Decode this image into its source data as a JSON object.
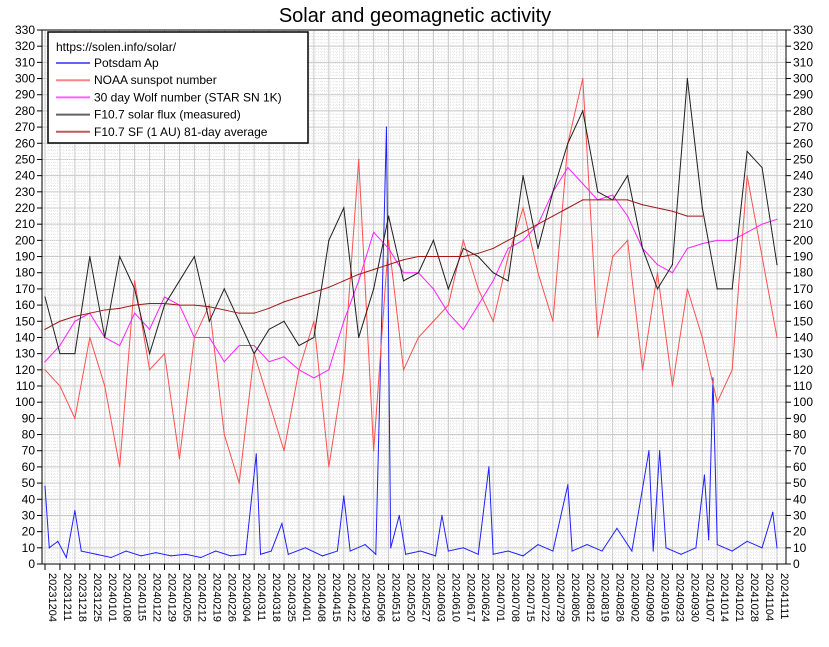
{
  "chart_data": {
    "type": "line",
    "title": "Solar and geomagnetic activity",
    "xlabel": "",
    "ylabel": "",
    "ylim": [
      0,
      330
    ],
    "y_ticks": [
      0,
      10,
      20,
      30,
      40,
      50,
      60,
      70,
      80,
      90,
      100,
      110,
      120,
      130,
      140,
      150,
      160,
      170,
      180,
      190,
      200,
      210,
      220,
      230,
      240,
      250,
      260,
      270,
      280,
      290,
      300,
      310,
      320,
      330
    ],
    "x_day_range": [
      0,
      343
    ],
    "x_tick_labels": [
      "20231204",
      "20231211",
      "20231218",
      "20231225",
      "20240101",
      "20240108",
      "20240115",
      "20240122",
      "20240129",
      "20240205",
      "20240212",
      "20240219",
      "20240226",
      "20240304",
      "20240311",
      "20240318",
      "20240325",
      "20240401",
      "20240408",
      "20240415",
      "20240422",
      "20240429",
      "20240506",
      "20240513",
      "20240520",
      "20240527",
      "20240603",
      "20240610",
      "20240617",
      "20240624",
      "20240701",
      "20240708",
      "20240715",
      "20240722",
      "20240729",
      "20240805",
      "20240812",
      "20240819",
      "20240826",
      "20240902",
      "20240909",
      "20240916",
      "20240923",
      "20240930",
      "20241007",
      "20241014",
      "20241021",
      "20241028",
      "20241104",
      "20241111"
    ],
    "grid": true,
    "legend_placement": "top-left",
    "legend_header": "https://solen.info/solar/",
    "series": [
      {
        "name": "Potsdam Ap",
        "color": "#2020ff",
        "points_by_day": [
          [
            0,
            48
          ],
          [
            2,
            10
          ],
          [
            6,
            14
          ],
          [
            10,
            4
          ],
          [
            14,
            33
          ],
          [
            17,
            8
          ],
          [
            24,
            6
          ],
          [
            31,
            4
          ],
          [
            38,
            8
          ],
          [
            45,
            5
          ],
          [
            52,
            7
          ],
          [
            59,
            5
          ],
          [
            66,
            6
          ],
          [
            73,
            4
          ],
          [
            80,
            8
          ],
          [
            87,
            5
          ],
          [
            94,
            6
          ],
          [
            99,
            68
          ],
          [
            101,
            6
          ],
          [
            106,
            8
          ],
          [
            111,
            25
          ],
          [
            114,
            6
          ],
          [
            122,
            10
          ],
          [
            130,
            5
          ],
          [
            137,
            8
          ],
          [
            140,
            42
          ],
          [
            143,
            8
          ],
          [
            150,
            12
          ],
          [
            155,
            6
          ],
          [
            160,
            270
          ],
          [
            162,
            10
          ],
          [
            166,
            30
          ],
          [
            169,
            6
          ],
          [
            176,
            8
          ],
          [
            183,
            5
          ],
          [
            186,
            30
          ],
          [
            189,
            8
          ],
          [
            196,
            10
          ],
          [
            203,
            6
          ],
          [
            208,
            60
          ],
          [
            210,
            6
          ],
          [
            217,
            8
          ],
          [
            224,
            5
          ],
          [
            231,
            12
          ],
          [
            238,
            8
          ],
          [
            245,
            49
          ],
          [
            247,
            8
          ],
          [
            254,
            12
          ],
          [
            261,
            8
          ],
          [
            268,
            22
          ],
          [
            275,
            8
          ],
          [
            283,
            70
          ],
          [
            285,
            8
          ],
          [
            288,
            70
          ],
          [
            291,
            10
          ],
          [
            298,
            6
          ],
          [
            305,
            10
          ],
          [
            309,
            55
          ],
          [
            311,
            15
          ],
          [
            313,
            115
          ],
          [
            315,
            12
          ],
          [
            322,
            8
          ],
          [
            329,
            14
          ],
          [
            336,
            10
          ],
          [
            341,
            32
          ],
          [
            343,
            10
          ]
        ]
      },
      {
        "name": "NOAA sunspot number",
        "color": "#ff5050",
        "weekly": [
          120,
          110,
          90,
          140,
          110,
          60,
          175,
          120,
          130,
          65,
          140,
          160,
          80,
          50,
          130,
          100,
          70,
          120,
          150,
          60,
          120,
          250,
          70,
          200,
          120,
          140,
          150,
          160,
          200,
          170,
          150,
          190,
          220,
          180,
          150,
          260,
          300,
          140,
          190,
          200,
          120,
          180,
          110,
          170,
          140,
          100,
          120,
          240,
          190,
          140
        ]
      },
      {
        "name": "30 day Wolf number (STAR SN 1K)",
        "color": "#ff20ff",
        "weekly": [
          125,
          135,
          150,
          155,
          140,
          135,
          155,
          145,
          165,
          160,
          140,
          140,
          125,
          135,
          135,
          125,
          128,
          120,
          115,
          120,
          150,
          175,
          205,
          195,
          180,
          180,
          170,
          155,
          145,
          160,
          175,
          195,
          200,
          210,
          230,
          245,
          235,
          225,
          228,
          215,
          195,
          185,
          180,
          195,
          198,
          200,
          200,
          205,
          210,
          213
        ]
      },
      {
        "name": "F10.7 solar flux (measured)",
        "color": "#202020",
        "weekly": [
          165,
          130,
          130,
          190,
          140,
          190,
          170,
          130,
          160,
          175,
          190,
          150,
          170,
          150,
          130,
          145,
          150,
          135,
          140,
          200,
          220,
          140,
          170,
          215,
          175,
          180,
          200,
          170,
          195,
          190,
          180,
          175,
          240,
          195,
          230,
          260,
          280,
          230,
          225,
          240,
          195,
          170,
          185,
          300,
          220,
          170,
          170,
          255,
          245,
          185
        ]
      },
      {
        "name": "F10.7 SF (1 AU) 81-day average",
        "color": "#a01818",
        "weekly": [
          145,
          150,
          153,
          155,
          157,
          158,
          160,
          161,
          161,
          160,
          160,
          159,
          157,
          155,
          155,
          158,
          162,
          165,
          168,
          171,
          175,
          179,
          182,
          185,
          188,
          190,
          190,
          190,
          190,
          192,
          195,
          200,
          205,
          210,
          215,
          220,
          225,
          225,
          225,
          225,
          222,
          220,
          218,
          215,
          215
        ]
      }
    ]
  }
}
